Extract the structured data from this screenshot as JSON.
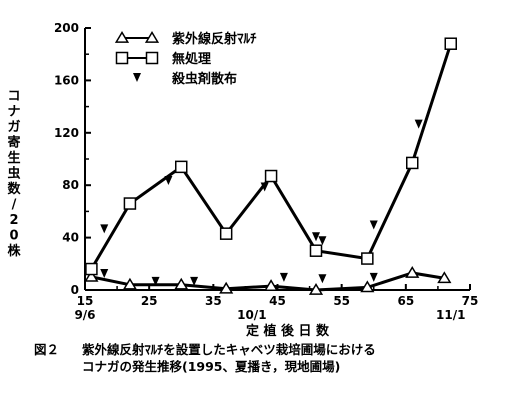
{
  "chart_data": {
    "type": "line",
    "x_tick_values": [
      15,
      25,
      35,
      45,
      55,
      65,
      75
    ],
    "x_tick_labels": [
      "15",
      "25",
      "35",
      "45",
      "55",
      "65",
      "75"
    ],
    "date_labels": [
      {
        "x": 15,
        "label": "9/6"
      },
      {
        "x": 41,
        "label": "10/1"
      },
      {
        "x": 72,
        "label": "11/1"
      }
    ],
    "xlim": [
      15,
      75
    ],
    "xlabel": "定 植 後 日 数",
    "y_tick_values": [
      0,
      40,
      80,
      120,
      160,
      200
    ],
    "y_tick_labels": [
      "0",
      "40",
      "80",
      "120",
      "160",
      "200"
    ],
    "ylim": [
      0,
      200
    ],
    "ylabel": "コナガ寄生虫数/20株",
    "series": [
      {
        "name": "紫外線反射ﾏﾙﾁ",
        "marker": "triangle",
        "x": [
          16,
          22,
          30,
          37,
          44,
          51,
          59,
          66,
          71
        ],
        "values": [
          10,
          4,
          4,
          1,
          3,
          0,
          2,
          13,
          9
        ]
      },
      {
        "name": "無処理",
        "marker": "square",
        "x": [
          16,
          22,
          30,
          37,
          44,
          51,
          59,
          66,
          72
        ],
        "values": [
          16,
          66,
          94,
          43,
          87,
          30,
          24,
          97,
          188
        ]
      }
    ],
    "spray_marker_label": "殺虫剤散布",
    "spray_events": [
      {
        "x": 18,
        "y": 47
      },
      {
        "x": 18,
        "y": 13
      },
      {
        "x": 26,
        "y": 7
      },
      {
        "x": 32,
        "y": 7
      },
      {
        "x": 28,
        "y": 84
      },
      {
        "x": 43,
        "y": 79
      },
      {
        "x": 46,
        "y": 10
      },
      {
        "x": 51,
        "y": 41
      },
      {
        "x": 52,
        "y": 38
      },
      {
        "x": 52,
        "y": 9
      },
      {
        "x": 60,
        "y": 50
      },
      {
        "x": 60,
        "y": 10
      },
      {
        "x": 67,
        "y": 127
      }
    ],
    "legend": "top-left"
  },
  "caption": {
    "label": "図２",
    "line1": "紫外線反射ﾏﾙﾁを設置したキャベツ栽培圃場における",
    "line2": "コナガの発生推移(1995、夏播き，現地圃場)"
  }
}
